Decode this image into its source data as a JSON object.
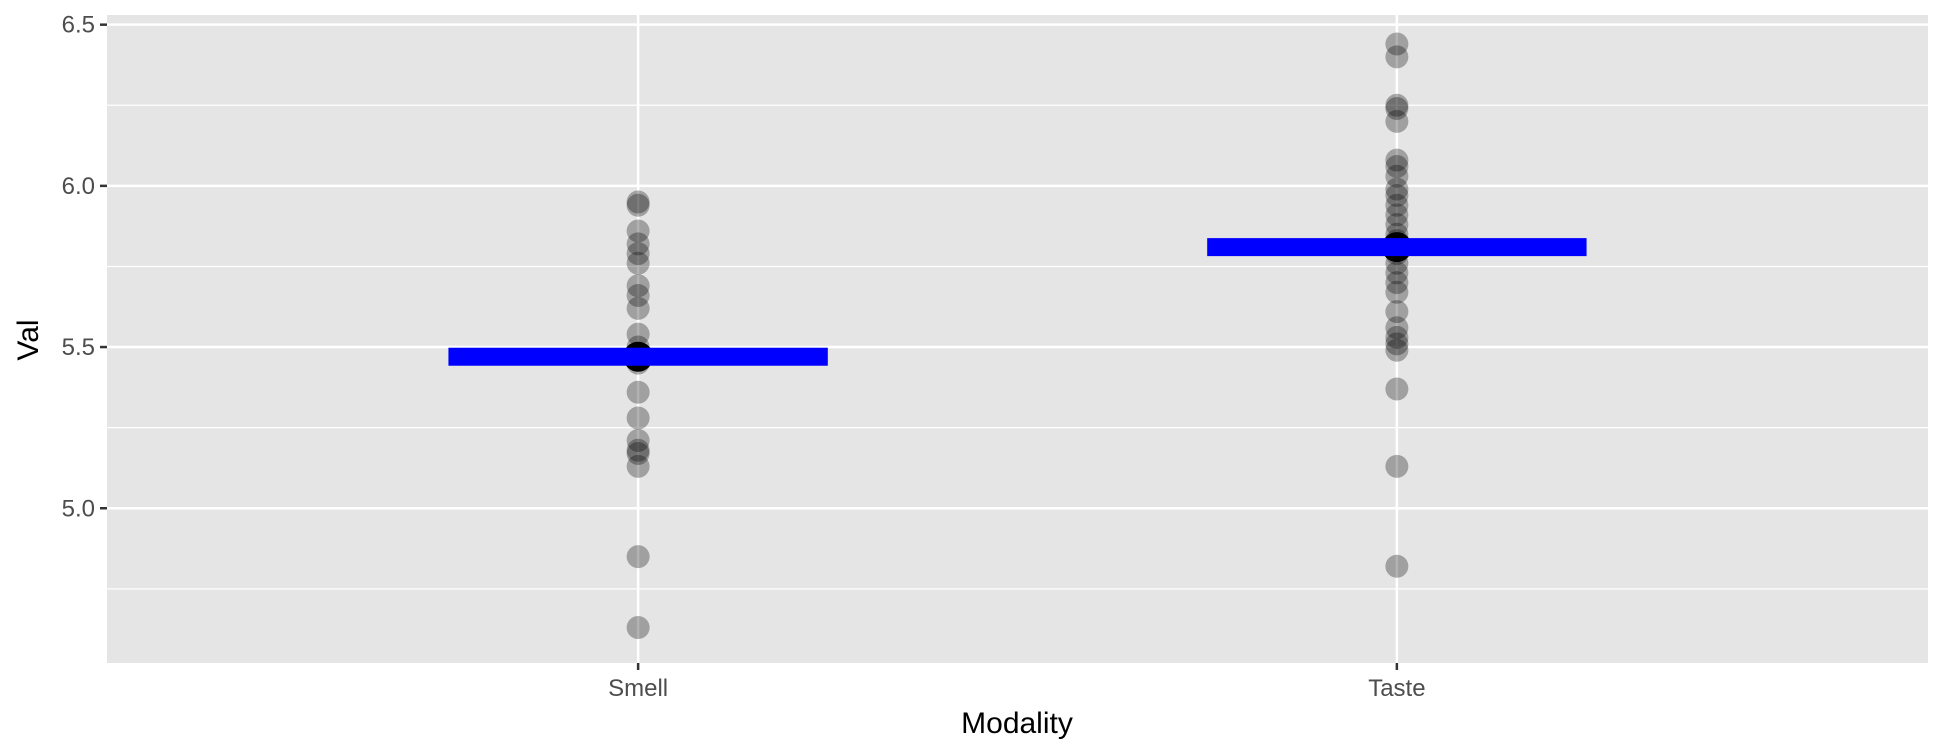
{
  "chart_data": {
    "type": "scatter",
    "title": "",
    "xlabel": "Modality",
    "ylabel": "Val",
    "categories": [
      "Smell",
      "Taste"
    ],
    "ylim": [
      4.52,
      6.53
    ],
    "y_ticks": [
      "5.0",
      "5.5",
      "6.0",
      "6.5"
    ],
    "grid": true,
    "colors": {
      "panel": "#e5e5e5",
      "grid": "#ffffff",
      "point": "#000000",
      "mean_bar": "#0000ff"
    },
    "series": [
      {
        "category": "Smell",
        "values": [
          5.95,
          5.94,
          5.86,
          5.82,
          5.79,
          5.76,
          5.69,
          5.66,
          5.62,
          5.54,
          5.5,
          5.48,
          5.47,
          5.46,
          5.45,
          5.36,
          5.28,
          5.21,
          5.18,
          5.17,
          5.13,
          4.85,
          4.63
        ],
        "mean": 5.47
      },
      {
        "category": "Taste",
        "values": [
          6.44,
          6.4,
          6.25,
          6.24,
          6.2,
          6.08,
          6.06,
          6.03,
          5.99,
          5.97,
          5.94,
          5.91,
          5.88,
          5.85,
          5.83,
          5.81,
          5.8,
          5.79,
          5.76,
          5.73,
          5.7,
          5.67,
          5.61,
          5.56,
          5.53,
          5.51,
          5.49,
          5.37,
          5.13,
          4.82
        ],
        "mean": 5.81
      }
    ]
  }
}
